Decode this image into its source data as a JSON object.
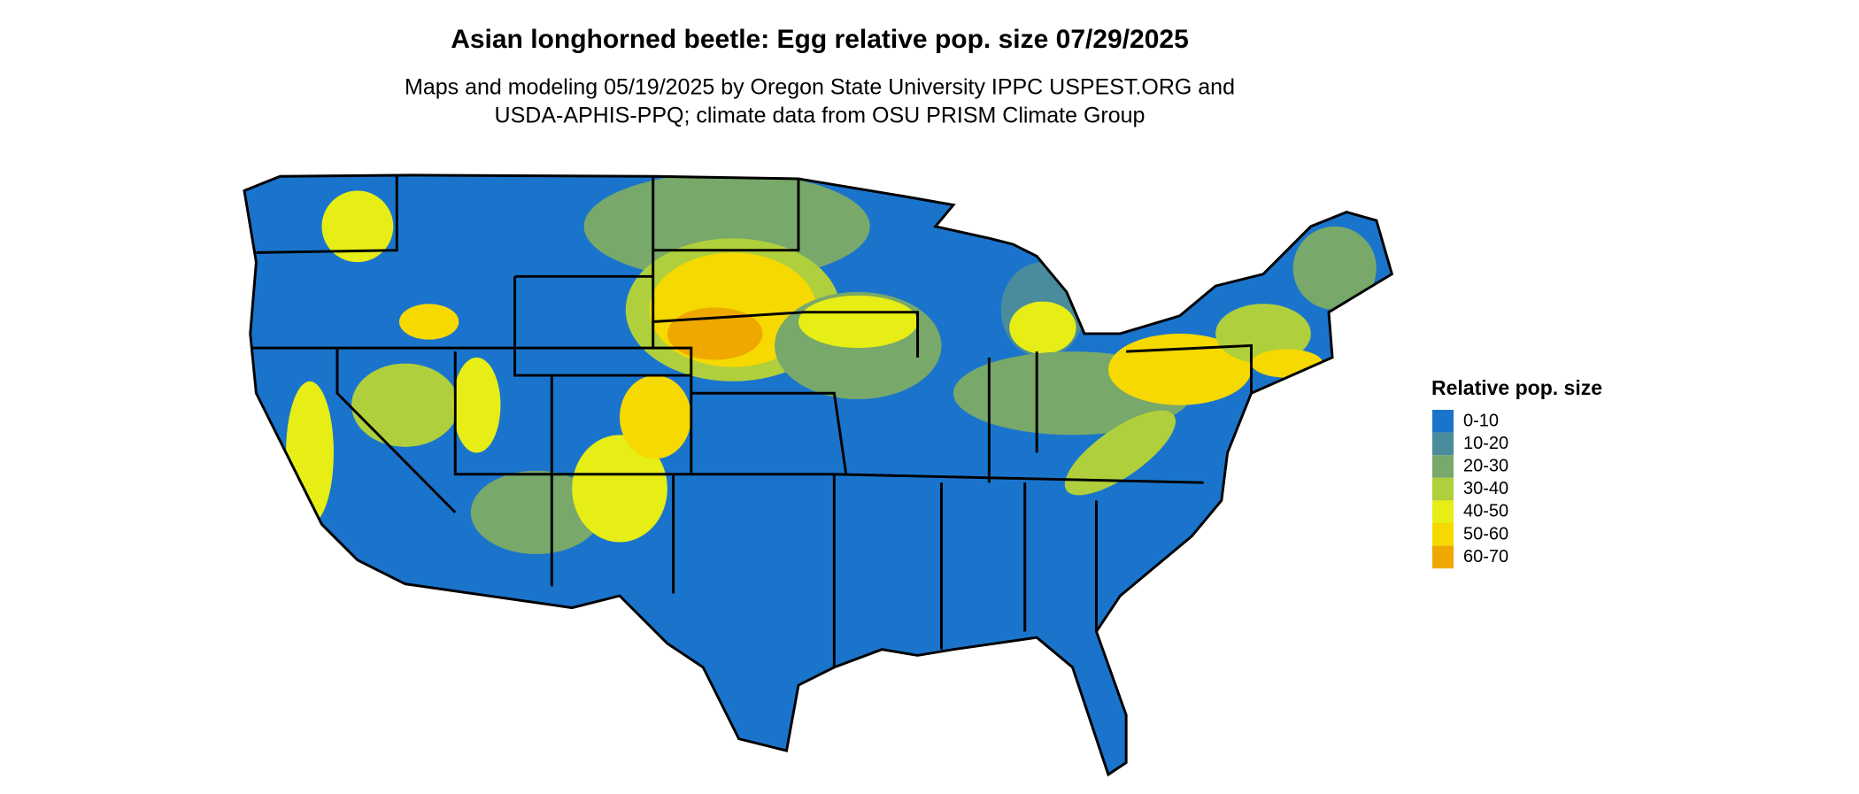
{
  "header": {
    "title": "Asian longhorned beetle: Egg relative pop. size 07/29/2025",
    "subtitle": [
      "Maps and modeling 05/19/2025 by Oregon State University IPPC USPEST.ORG and",
      "USDA-APHIS-PPQ; climate data from OSU PRISM Climate Group"
    ]
  },
  "legend": {
    "title": "Relative pop. size",
    "items": [
      {
        "label": "0-10",
        "color": "#1b74cc"
      },
      {
        "label": "10-20",
        "color": "#4a8c9c"
      },
      {
        "label": "20-30",
        "color": "#78a86a"
      },
      {
        "label": "30-40",
        "color": "#b0cf3c"
      },
      {
        "label": "40-50",
        "color": "#e6ee16"
      },
      {
        "label": "50-60",
        "color": "#f6d900"
      },
      {
        "label": "60-70",
        "color": "#efa800"
      }
    ]
  }
}
